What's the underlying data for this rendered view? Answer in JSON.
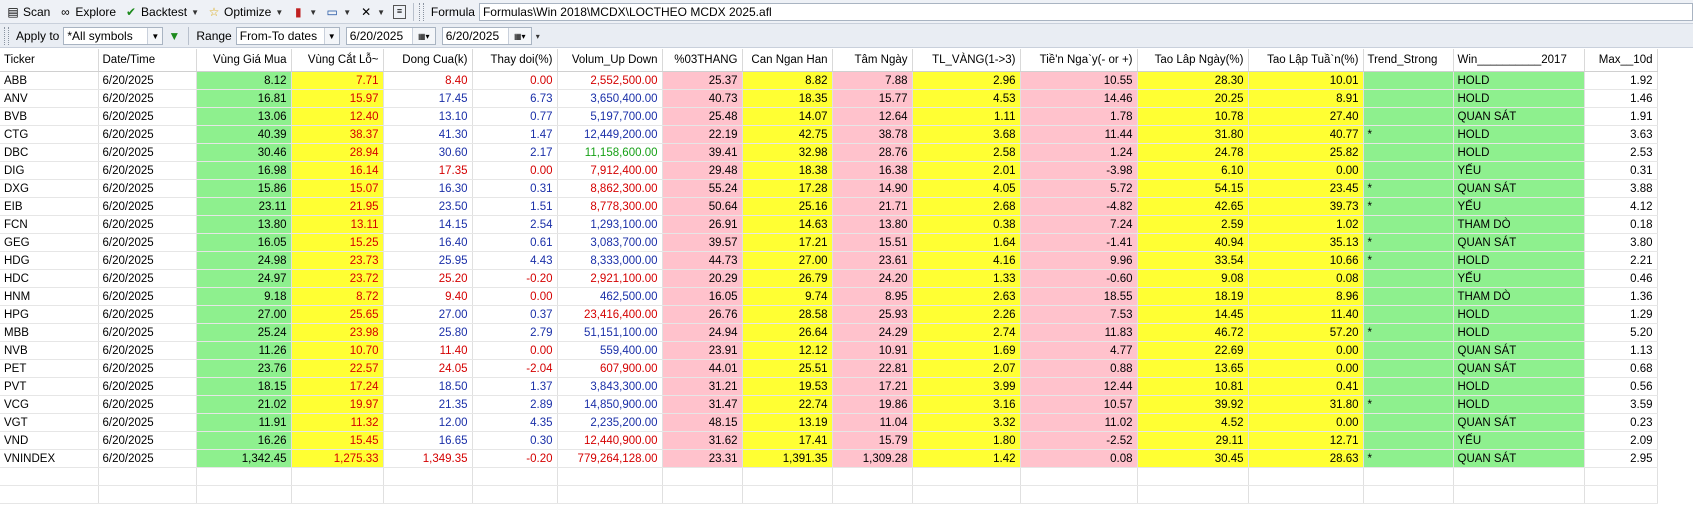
{
  "toolbar": {
    "scan": "Scan",
    "explore": "Explore",
    "backtest": "Backtest",
    "optimize": "Optimize",
    "formula_label": "Formula",
    "formula_path": "Formulas\\Win 2018\\MCDX\\LOCTHEO MCDX 2025.afl"
  },
  "filter": {
    "apply_to_label": "Apply to",
    "apply_to_value": "*All symbols",
    "range_label": "Range",
    "range_value": "From-To dates",
    "from_date": "6/20/2025",
    "to_date": "6/20/2025"
  },
  "columns": [
    "Ticker",
    "Date/Time",
    "Vùng Giá Mua",
    "Vùng Cắt Lỗ~",
    "Dong Cua(k)",
    "Thay doi(%)",
    "Volum_Up Down",
    "%03THANG",
    "Can Ngan Han",
    "Tâm Ngày",
    "TL_VÀNG(1->3)",
    "Tiề'n Nga`y(- or +)",
    "Tao Lâp Ngày(%)",
    "Tao Lập Tuầ`n(%)",
    "Trend_Strong",
    "Win__________2017",
    "Max__10d"
  ],
  "rows": [
    {
      "ticker": "ABB",
      "date": "6/20/2025",
      "mua": "8.12",
      "catlo": "7.71",
      "dongcua": "8.40",
      "thaydoi": "0.00",
      "volum": "2,552,500.00",
      "thang": "25.37",
      "can": "8.82",
      "tam": "7.88",
      "tl": "2.96",
      "tien": "10.55",
      "tlngay": "28.30",
      "tltuan": "10.01",
      "trend": "",
      "win": "HOLD",
      "max": "1.92",
      "dc_color": "red",
      "vol_color": "red"
    },
    {
      "ticker": "ANV",
      "date": "6/20/2025",
      "mua": "16.81",
      "catlo": "15.97",
      "dongcua": "17.45",
      "thaydoi": "6.73",
      "volum": "3,650,400.00",
      "thang": "40.73",
      "can": "18.35",
      "tam": "15.77",
      "tl": "4.53",
      "tien": "14.46",
      "tlngay": "20.25",
      "tltuan": "8.91",
      "trend": "",
      "win": "HOLD",
      "max": "1.46",
      "dc_color": "blue",
      "vol_color": "blue"
    },
    {
      "ticker": "BVB",
      "date": "6/20/2025",
      "mua": "13.06",
      "catlo": "12.40",
      "dongcua": "13.10",
      "thaydoi": "0.77",
      "volum": "5,197,700.00",
      "thang": "25.48",
      "can": "14.07",
      "tam": "12.64",
      "tl": "1.11",
      "tien": "1.78",
      "tlngay": "10.78",
      "tltuan": "27.40",
      "trend": "",
      "win": "QUAN SÁT",
      "max": "1.91",
      "dc_color": "blue",
      "vol_color": "blue"
    },
    {
      "ticker": "CTG",
      "date": "6/20/2025",
      "mua": "40.39",
      "catlo": "38.37",
      "dongcua": "41.30",
      "thaydoi": "1.47",
      "volum": "12,449,200.00",
      "thang": "22.19",
      "can": "42.75",
      "tam": "38.78",
      "tl": "3.68",
      "tien": "11.44",
      "tlngay": "31.80",
      "tltuan": "40.77",
      "trend": "*",
      "win": "HOLD",
      "max": "3.63",
      "dc_color": "blue",
      "vol_color": "blue"
    },
    {
      "ticker": "DBC",
      "date": "6/20/2025",
      "mua": "30.46",
      "catlo": "28.94",
      "dongcua": "30.60",
      "thaydoi": "2.17",
      "volum": "11,158,600.00",
      "thang": "39.41",
      "can": "32.98",
      "tam": "28.76",
      "tl": "2.58",
      "tien": "1.24",
      "tlngay": "24.78",
      "tltuan": "25.82",
      "trend": "",
      "win": "HOLD",
      "max": "2.53",
      "dc_color": "blue",
      "vol_color": "green"
    },
    {
      "ticker": "DIG",
      "date": "6/20/2025",
      "mua": "16.98",
      "catlo": "16.14",
      "dongcua": "17.35",
      "thaydoi": "0.00",
      "volum": "7,912,400.00",
      "thang": "29.48",
      "can": "18.38",
      "tam": "16.38",
      "tl": "2.01",
      "tien": "-3.98",
      "tlngay": "6.10",
      "tltuan": "0.00",
      "trend": "",
      "win": "YẾU",
      "max": "0.31",
      "dc_color": "red",
      "vol_color": "red"
    },
    {
      "ticker": "DXG",
      "date": "6/20/2025",
      "mua": "15.86",
      "catlo": "15.07",
      "dongcua": "16.30",
      "thaydoi": "0.31",
      "volum": "8,862,300.00",
      "thang": "55.24",
      "can": "17.28",
      "tam": "14.90",
      "tl": "4.05",
      "tien": "5.72",
      "tlngay": "54.15",
      "tltuan": "23.45",
      "trend": "*",
      "win": "QUAN SÁT",
      "max": "3.88",
      "dc_color": "blue",
      "vol_color": "red"
    },
    {
      "ticker": "EIB",
      "date": "6/20/2025",
      "mua": "23.11",
      "catlo": "21.95",
      "dongcua": "23.50",
      "thaydoi": "1.51",
      "volum": "8,778,300.00",
      "thang": "50.64",
      "can": "25.16",
      "tam": "21.71",
      "tl": "2.68",
      "tien": "-4.82",
      "tlngay": "42.65",
      "tltuan": "39.73",
      "trend": "*",
      "win": "YẾU",
      "max": "4.12",
      "dc_color": "blue",
      "vol_color": "red"
    },
    {
      "ticker": "FCN",
      "date": "6/20/2025",
      "mua": "13.80",
      "catlo": "13.11",
      "dongcua": "14.15",
      "thaydoi": "2.54",
      "volum": "1,293,100.00",
      "thang": "26.91",
      "can": "14.63",
      "tam": "13.80",
      "tl": "0.38",
      "tien": "7.24",
      "tlngay": "2.59",
      "tltuan": "1.02",
      "trend": "",
      "win": "THAM DÒ",
      "max": "0.18",
      "dc_color": "blue",
      "vol_color": "blue"
    },
    {
      "ticker": "GEG",
      "date": "6/20/2025",
      "mua": "16.05",
      "catlo": "15.25",
      "dongcua": "16.40",
      "thaydoi": "0.61",
      "volum": "3,083,700.00",
      "thang": "39.57",
      "can": "17.21",
      "tam": "15.51",
      "tl": "1.64",
      "tien": "-1.41",
      "tlngay": "40.94",
      "tltuan": "35.13",
      "trend": "*",
      "win": "QUAN SÁT",
      "max": "3.80",
      "dc_color": "blue",
      "vol_color": "blue"
    },
    {
      "ticker": "HDG",
      "date": "6/20/2025",
      "mua": "24.98",
      "catlo": "23.73",
      "dongcua": "25.95",
      "thaydoi": "4.43",
      "volum": "8,333,000.00",
      "thang": "44.73",
      "can": "27.00",
      "tam": "23.61",
      "tl": "4.16",
      "tien": "9.96",
      "tlngay": "33.54",
      "tltuan": "10.66",
      "trend": "*",
      "win": "HOLD",
      "max": "2.21",
      "dc_color": "blue",
      "vol_color": "blue"
    },
    {
      "ticker": "HDC",
      "date": "6/20/2025",
      "mua": "24.97",
      "catlo": "23.72",
      "dongcua": "25.20",
      "thaydoi": "-0.20",
      "volum": "2,921,100.00",
      "thang": "20.29",
      "can": "26.79",
      "tam": "24.20",
      "tl": "1.33",
      "tien": "-0.60",
      "tlngay": "9.08",
      "tltuan": "0.08",
      "trend": "",
      "win": "YẾU",
      "max": "0.46",
      "dc_color": "red",
      "vol_color": "red"
    },
    {
      "ticker": "HNM",
      "date": "6/20/2025",
      "mua": "9.18",
      "catlo": "8.72",
      "dongcua": "9.40",
      "thaydoi": "0.00",
      "volum": "462,500.00",
      "thang": "16.05",
      "can": "9.74",
      "tam": "8.95",
      "tl": "2.63",
      "tien": "18.55",
      "tlngay": "18.19",
      "tltuan": "8.96",
      "trend": "",
      "win": "THAM DÒ",
      "max": "1.36",
      "dc_color": "red",
      "vol_color": "blue"
    },
    {
      "ticker": "HPG",
      "date": "6/20/2025",
      "mua": "27.00",
      "catlo": "25.65",
      "dongcua": "27.00",
      "thaydoi": "0.37",
      "volum": "23,416,400.00",
      "thang": "26.76",
      "can": "28.58",
      "tam": "25.93",
      "tl": "2.26",
      "tien": "7.53",
      "tlngay": "14.45",
      "tltuan": "11.40",
      "trend": "",
      "win": "HOLD",
      "max": "1.29",
      "dc_color": "blue",
      "vol_color": "red"
    },
    {
      "ticker": "MBB",
      "date": "6/20/2025",
      "mua": "25.24",
      "catlo": "23.98",
      "dongcua": "25.80",
      "thaydoi": "2.79",
      "volum": "51,151,100.00",
      "thang": "24.94",
      "can": "26.64",
      "tam": "24.29",
      "tl": "2.74",
      "tien": "11.83",
      "tlngay": "46.72",
      "tltuan": "57.20",
      "trend": "*",
      "win": "HOLD",
      "max": "5.20",
      "dc_color": "blue",
      "vol_color": "blue"
    },
    {
      "ticker": "NVB",
      "date": "6/20/2025",
      "mua": "11.26",
      "catlo": "10.70",
      "dongcua": "11.40",
      "thaydoi": "0.00",
      "volum": "559,400.00",
      "thang": "23.91",
      "can": "12.12",
      "tam": "10.91",
      "tl": "1.69",
      "tien": "4.77",
      "tlngay": "22.69",
      "tltuan": "0.00",
      "trend": "",
      "win": "QUAN SÁT",
      "max": "1.13",
      "dc_color": "red",
      "vol_color": "blue"
    },
    {
      "ticker": "PET",
      "date": "6/20/2025",
      "mua": "23.76",
      "catlo": "22.57",
      "dongcua": "24.05",
      "thaydoi": "-2.04",
      "volum": "607,900.00",
      "thang": "44.01",
      "can": "25.51",
      "tam": "22.81",
      "tl": "2.07",
      "tien": "0.88",
      "tlngay": "13.65",
      "tltuan": "0.00",
      "trend": "",
      "win": "QUAN SÁT",
      "max": "0.68",
      "dc_color": "red",
      "vol_color": "red"
    },
    {
      "ticker": "PVT",
      "date": "6/20/2025",
      "mua": "18.15",
      "catlo": "17.24",
      "dongcua": "18.50",
      "thaydoi": "1.37",
      "volum": "3,843,300.00",
      "thang": "31.21",
      "can": "19.53",
      "tam": "17.21",
      "tl": "3.99",
      "tien": "12.44",
      "tlngay": "10.81",
      "tltuan": "0.41",
      "trend": "",
      "win": "HOLD",
      "max": "0.56",
      "dc_color": "blue",
      "vol_color": "blue"
    },
    {
      "ticker": "VCG",
      "date": "6/20/2025",
      "mua": "21.02",
      "catlo": "19.97",
      "dongcua": "21.35",
      "thaydoi": "2.89",
      "volum": "14,850,900.00",
      "thang": "31.47",
      "can": "22.74",
      "tam": "19.86",
      "tl": "3.16",
      "tien": "10.57",
      "tlngay": "39.92",
      "tltuan": "31.80",
      "trend": "*",
      "win": "HOLD",
      "max": "3.59",
      "dc_color": "blue",
      "vol_color": "blue"
    },
    {
      "ticker": "VGT",
      "date": "6/20/2025",
      "mua": "11.91",
      "catlo": "11.32",
      "dongcua": "12.00",
      "thaydoi": "4.35",
      "volum": "2,235,200.00",
      "thang": "48.15",
      "can": "13.19",
      "tam": "11.04",
      "tl": "3.32",
      "tien": "11.02",
      "tlngay": "4.52",
      "tltuan": "0.00",
      "trend": "",
      "win": "QUAN SÁT",
      "max": "0.23",
      "dc_color": "blue",
      "vol_color": "blue"
    },
    {
      "ticker": "VND",
      "date": "6/20/2025",
      "mua": "16.26",
      "catlo": "15.45",
      "dongcua": "16.65",
      "thaydoi": "0.30",
      "volum": "12,440,900.00",
      "thang": "31.62",
      "can": "17.41",
      "tam": "15.79",
      "tl": "1.80",
      "tien": "-2.52",
      "tlngay": "29.11",
      "tltuan": "12.71",
      "trend": "",
      "win": "YẾU",
      "max": "2.09",
      "dc_color": "blue",
      "vol_color": "red"
    },
    {
      "ticker": "VNINDEX",
      "date": "6/20/2025",
      "mua": "1,342.45",
      "catlo": "1,275.33",
      "dongcua": "1,349.35",
      "thaydoi": "-0.20",
      "volum": "779,264,128.00",
      "thang": "23.31",
      "can": "1,391.35",
      "tam": "1,309.28",
      "tl": "1.42",
      "tien": "0.08",
      "tlngay": "30.45",
      "tltuan": "28.63",
      "trend": "*",
      "win": "QUAN SÁT",
      "max": "2.95",
      "dc_color": "red",
      "vol_color": "red"
    }
  ],
  "colors": {
    "green_cell": "#8ef08e",
    "yellow_cell": "#ffff33",
    "pink_cell": "#ffc2cc",
    "up_text": "#1a2fa8",
    "down_text": "#d40000",
    "strong_text": "#17a117"
  }
}
